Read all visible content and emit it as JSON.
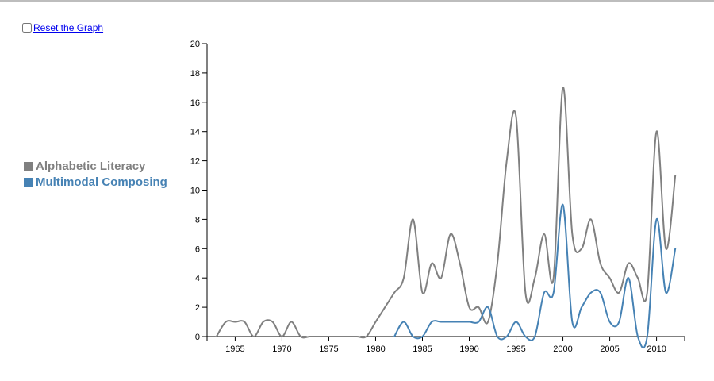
{
  "controls": {
    "reset_label": "Reset the Graph"
  },
  "colors": {
    "alphabetic": "#808080",
    "multimodal": "#4682b4",
    "axis": "#000000"
  },
  "chart_data": {
    "type": "line",
    "title": "",
    "xlabel": "",
    "ylabel": "",
    "xlim": [
      1962,
      2013
    ],
    "ylim": [
      0,
      20
    ],
    "x_ticks": [
      1965,
      1970,
      1975,
      1980,
      1985,
      1990,
      1995,
      2000,
      2005,
      2010
    ],
    "y_ticks": [
      0,
      2,
      4,
      6,
      8,
      10,
      12,
      14,
      16,
      18,
      20
    ],
    "legend_position": "left",
    "series": [
      {
        "name": "Alphabetic Literacy",
        "color": "#808080",
        "x": [
          1963,
          1964,
          1965,
          1966,
          1967,
          1968,
          1969,
          1970,
          1971,
          1972,
          1973,
          1974,
          1975,
          1976,
          1977,
          1978,
          1979,
          1980,
          1981,
          1982,
          1983,
          1984,
          1985,
          1986,
          1987,
          1988,
          1989,
          1990,
          1991,
          1992,
          1993,
          1994,
          1995,
          1996,
          1997,
          1998,
          1999,
          2000,
          2001,
          2002,
          2003,
          2004,
          2005,
          2006,
          2007,
          2008,
          2009,
          2010,
          2011,
          2012
        ],
        "y": [
          0,
          1,
          1,
          1,
          0,
          1,
          1,
          0,
          1,
          0,
          0,
          0,
          0,
          0,
          0,
          0,
          0,
          1,
          2,
          3,
          4,
          8,
          3,
          5,
          4,
          7,
          5,
          2,
          2,
          1,
          5,
          12,
          15,
          3,
          4,
          7,
          4,
          17,
          7,
          6,
          8,
          5,
          4,
          3,
          5,
          4,
          3,
          14,
          6,
          11
        ]
      },
      {
        "name": "Multimodal Composing",
        "color": "#4682b4",
        "x": [
          1982,
          1983,
          1984,
          1985,
          1986,
          1987,
          1988,
          1989,
          1990,
          1991,
          1992,
          1993,
          1994,
          1995,
          1996,
          1997,
          1998,
          1999,
          2000,
          2001,
          2002,
          2003,
          2004,
          2005,
          2006,
          2007,
          2008,
          2009,
          2010,
          2011,
          2012
        ],
        "y": [
          0,
          1,
          0,
          0,
          1,
          1,
          1,
          1,
          1,
          1,
          2,
          0,
          0,
          1,
          0,
          0,
          3,
          3,
          9,
          1,
          2,
          3,
          3,
          1,
          1,
          4,
          0,
          0,
          8,
          3,
          6
        ]
      }
    ]
  }
}
